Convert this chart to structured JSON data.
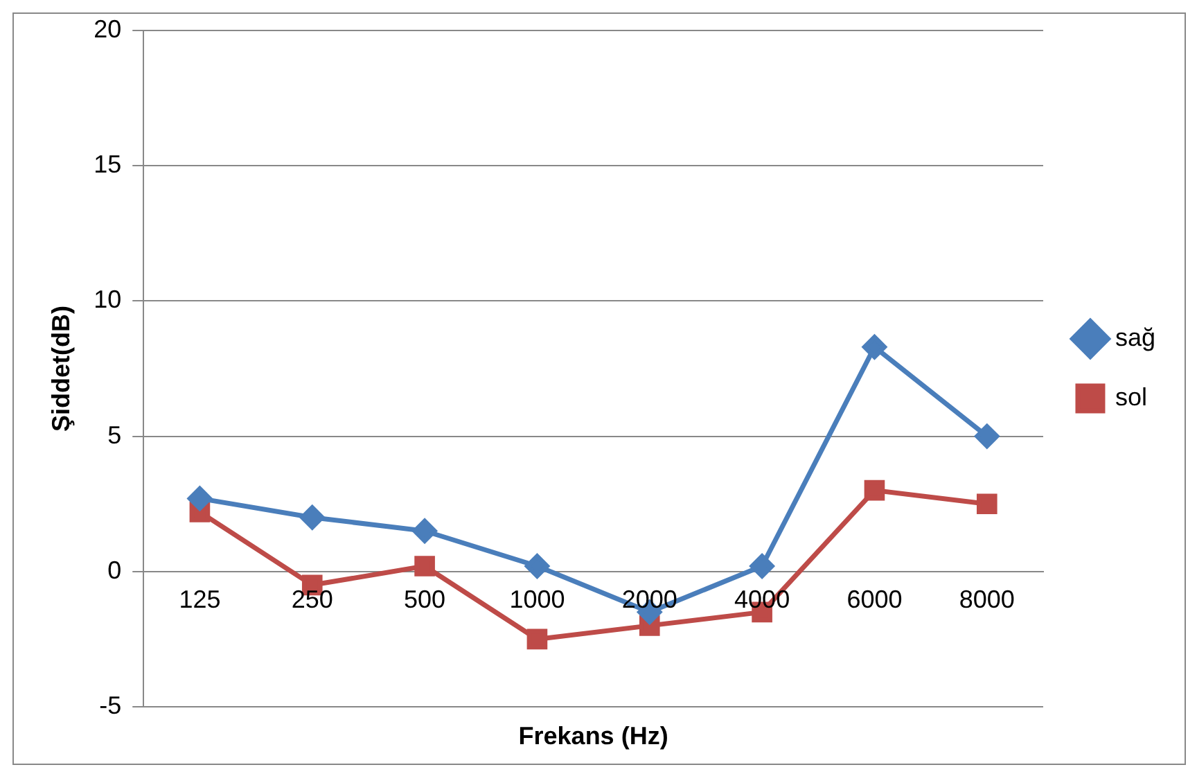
{
  "chart_data": {
    "type": "line",
    "xlabel": "Frekans (Hz)",
    "ylabel": "Şiddet(dB)",
    "categories": [
      "125",
      "250",
      "500",
      "1000",
      "2000",
      "4000",
      "6000",
      "8000"
    ],
    "series": [
      {
        "name": "sağ",
        "color": "#4a7ebb",
        "marker": "diamond",
        "values": [
          2.7,
          2.0,
          1.5,
          0.2,
          -1.5,
          0.2,
          8.3,
          5.0
        ]
      },
      {
        "name": "sol",
        "color": "#be4b48",
        "marker": "square",
        "values": [
          2.2,
          -0.5,
          0.2,
          -2.5,
          -2.0,
          -1.5,
          3.0,
          2.5
        ]
      }
    ],
    "ylim": [
      -5,
      20
    ],
    "yticks": [
      -5,
      0,
      5,
      10,
      15,
      20
    ],
    "grid": "y",
    "legend": "right"
  }
}
